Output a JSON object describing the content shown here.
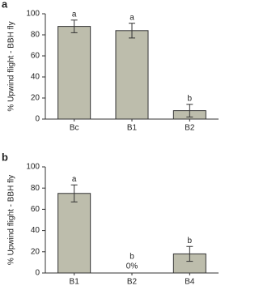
{
  "chart_data": [
    {
      "type": "bar",
      "panel": "a",
      "ylabel": "% Upwind flight - BBH fly",
      "categories": [
        "Bc",
        "B1",
        "B2"
      ],
      "values": [
        88,
        84,
        8
      ],
      "errors": [
        6,
        7,
        6
      ],
      "annotations": [
        "a",
        "a",
        "b"
      ],
      "color": "#bdbdac",
      "ylim": [
        0,
        100
      ],
      "yticks": [
        0,
        20,
        40,
        60,
        80,
        100
      ]
    },
    {
      "type": "bar",
      "panel": "b",
      "ylabel": "% Upwind flight - BBH fly",
      "categories": [
        "B1",
        "B2",
        "B4"
      ],
      "values": [
        75,
        0,
        18
      ],
      "errors": [
        8,
        0,
        7
      ],
      "value_labels": [
        null,
        "0%",
        null
      ],
      "annotations": [
        "a",
        "b",
        "b"
      ],
      "color": "#bdbdac",
      "ylim": [
        0,
        100
      ],
      "yticks": [
        0,
        20,
        40,
        60,
        80,
        100
      ]
    }
  ]
}
